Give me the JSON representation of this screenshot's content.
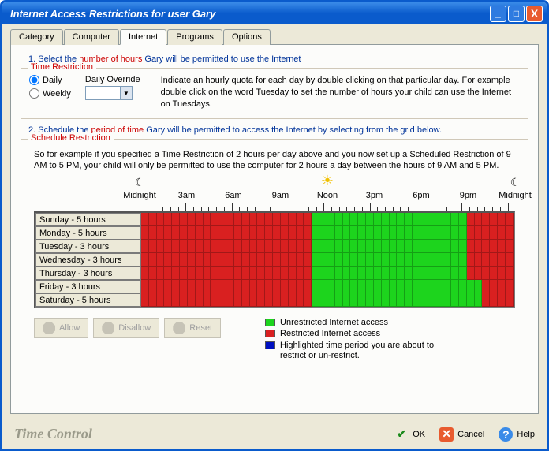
{
  "window": {
    "title": "Internet Access Restrictions for user Gary"
  },
  "tabs": [
    "Category",
    "Computer",
    "Internet",
    "Programs",
    "Options"
  ],
  "activeTab": 2,
  "step1": {
    "prefix": "1. Select the ",
    "highlight": "number of hours",
    "suffix": " Gary will be permitted to use the Internet"
  },
  "timeRestriction": {
    "legend": "Time Restriction",
    "daily": "Daily",
    "weekly": "Weekly",
    "override": "Daily Override",
    "selected": "daily",
    "text": "Indicate an hourly quota for each day by double clicking on that particular day. For example double click on the word Tuesday to set the number of hours your child can use the Internet  on Tuesdays."
  },
  "step2": {
    "prefix": "2. Schedule the ",
    "highlight": "period of time",
    "suffix": " Gary will be permitted to access the Internet by selecting from the grid below."
  },
  "scheduleRestriction": {
    "legend": "Schedule Restriction",
    "text": "So for example if you specified a Time Restriction of 2 hours per day above and you now set up a Scheduled Restriction of 9 AM to 5 PM, your child will only be permitted to use the computer for 2 hours a day between the hours of 9 AM and 5 PM."
  },
  "timeLabels": [
    "Midnight",
    "3am",
    "6am",
    "9am",
    "Noon",
    "3pm",
    "6pm",
    "9pm",
    "Midnight"
  ],
  "days": [
    {
      "label": "Sunday - 5 hours",
      "restrictedRanges": [
        [
          0,
          22
        ],
        [
          42,
          48
        ]
      ]
    },
    {
      "label": "Monday - 5 hours",
      "restrictedRanges": [
        [
          0,
          22
        ],
        [
          42,
          48
        ]
      ]
    },
    {
      "label": "Tuesday - 3 hours",
      "restrictedRanges": [
        [
          0,
          22
        ],
        [
          42,
          48
        ]
      ]
    },
    {
      "label": "Wednesday - 3 hours",
      "restrictedRanges": [
        [
          0,
          22
        ],
        [
          42,
          48
        ]
      ]
    },
    {
      "label": "Thursday - 3 hours",
      "restrictedRanges": [
        [
          0,
          22
        ],
        [
          42,
          48
        ]
      ]
    },
    {
      "label": "Friday - 3 hours",
      "restrictedRanges": [
        [
          0,
          22
        ],
        [
          44,
          48
        ]
      ]
    },
    {
      "label": "Saturday - 5 hours",
      "restrictedRanges": [
        [
          0,
          22
        ],
        [
          44,
          48
        ]
      ]
    }
  ],
  "cellsPerRow": 48,
  "colors": {
    "unrestricted": "#1dd41d",
    "restricted": "#d92020",
    "highlight": "#0010c0",
    "dayLabelBg": "#ece9d8"
  },
  "buttons": {
    "allow": "Allow",
    "disallow": "Disallow",
    "reset": "Reset"
  },
  "legend": {
    "unrestricted": "Unrestricted Internet access",
    "restricted": "Restricted Internet access",
    "highlight": "Highlighted time period you are about to restrict or un-restrict."
  },
  "footer": {
    "brand": "Time Control",
    "ok": "OK",
    "cancel": "Cancel",
    "help": "Help"
  }
}
